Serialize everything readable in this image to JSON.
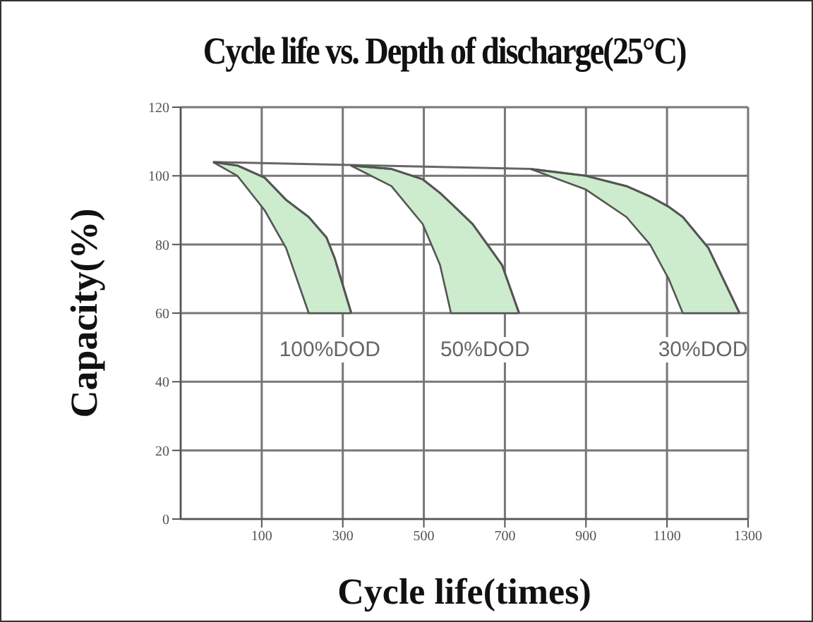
{
  "chart_data": {
    "type": "line",
    "title": "Cycle life vs. Depth of discharge(25°C)",
    "xlabel": "Cycle life(times)",
    "ylabel": "Capacity(%)",
    "xlim": [
      -100,
      1300
    ],
    "xticks": [
      100,
      300,
      500,
      700,
      900,
      1100,
      1300
    ],
    "ylim": [
      0,
      120
    ],
    "yticks": [
      0,
      20,
      40,
      60,
      80,
      100,
      120
    ],
    "grid": true,
    "series": [
      {
        "color": "#666666",
        "x": [
          -20,
          763
        ],
        "values": [
          104,
          102
        ]
      },
      {
        "color": "#555555",
        "x": [
          -20,
          40,
          107,
          160,
          216,
          260,
          280,
          321
        ],
        "lower": [
          104,
          100,
          90,
          79,
          60,
          60,
          60,
          60
        ],
        "upper": [
          104,
          103,
          99.5,
          93,
          88,
          82,
          76,
          60
        ],
        "values": [
          104,
          103,
          99.5,
          93,
          88,
          82,
          76,
          60
        ]
      },
      {
        "color": "#555555",
        "x": [
          320,
          420,
          497,
          540,
          567,
          620,
          693,
          735
        ],
        "lower": [
          103,
          97,
          86,
          74,
          60,
          60,
          60,
          60
        ],
        "upper": [
          103,
          102,
          99,
          95,
          92,
          86,
          74,
          60
        ],
        "values": [
          103,
          102,
          99,
          95,
          92,
          86,
          74,
          60
        ]
      },
      {
        "color": "#555555",
        "x": [
          763,
          900,
          1000,
          1058,
          1104,
          1139,
          1202,
          1279
        ],
        "lower": [
          102,
          96,
          88,
          80,
          70,
          60,
          60,
          60
        ],
        "upper": [
          102,
          100,
          97,
          94,
          91,
          88,
          79,
          60
        ],
        "values": [
          102,
          100,
          97,
          94,
          91,
          88,
          79,
          60
        ]
      }
    ],
    "annotations": [
      {
        "text": "100%DOD",
        "x": 268,
        "y": 60
      },
      {
        "text": "50%DOD",
        "x": 651,
        "y": 60
      },
      {
        "text": "30%DOD",
        "x": 1209,
        "y": 60
      }
    ]
  }
}
